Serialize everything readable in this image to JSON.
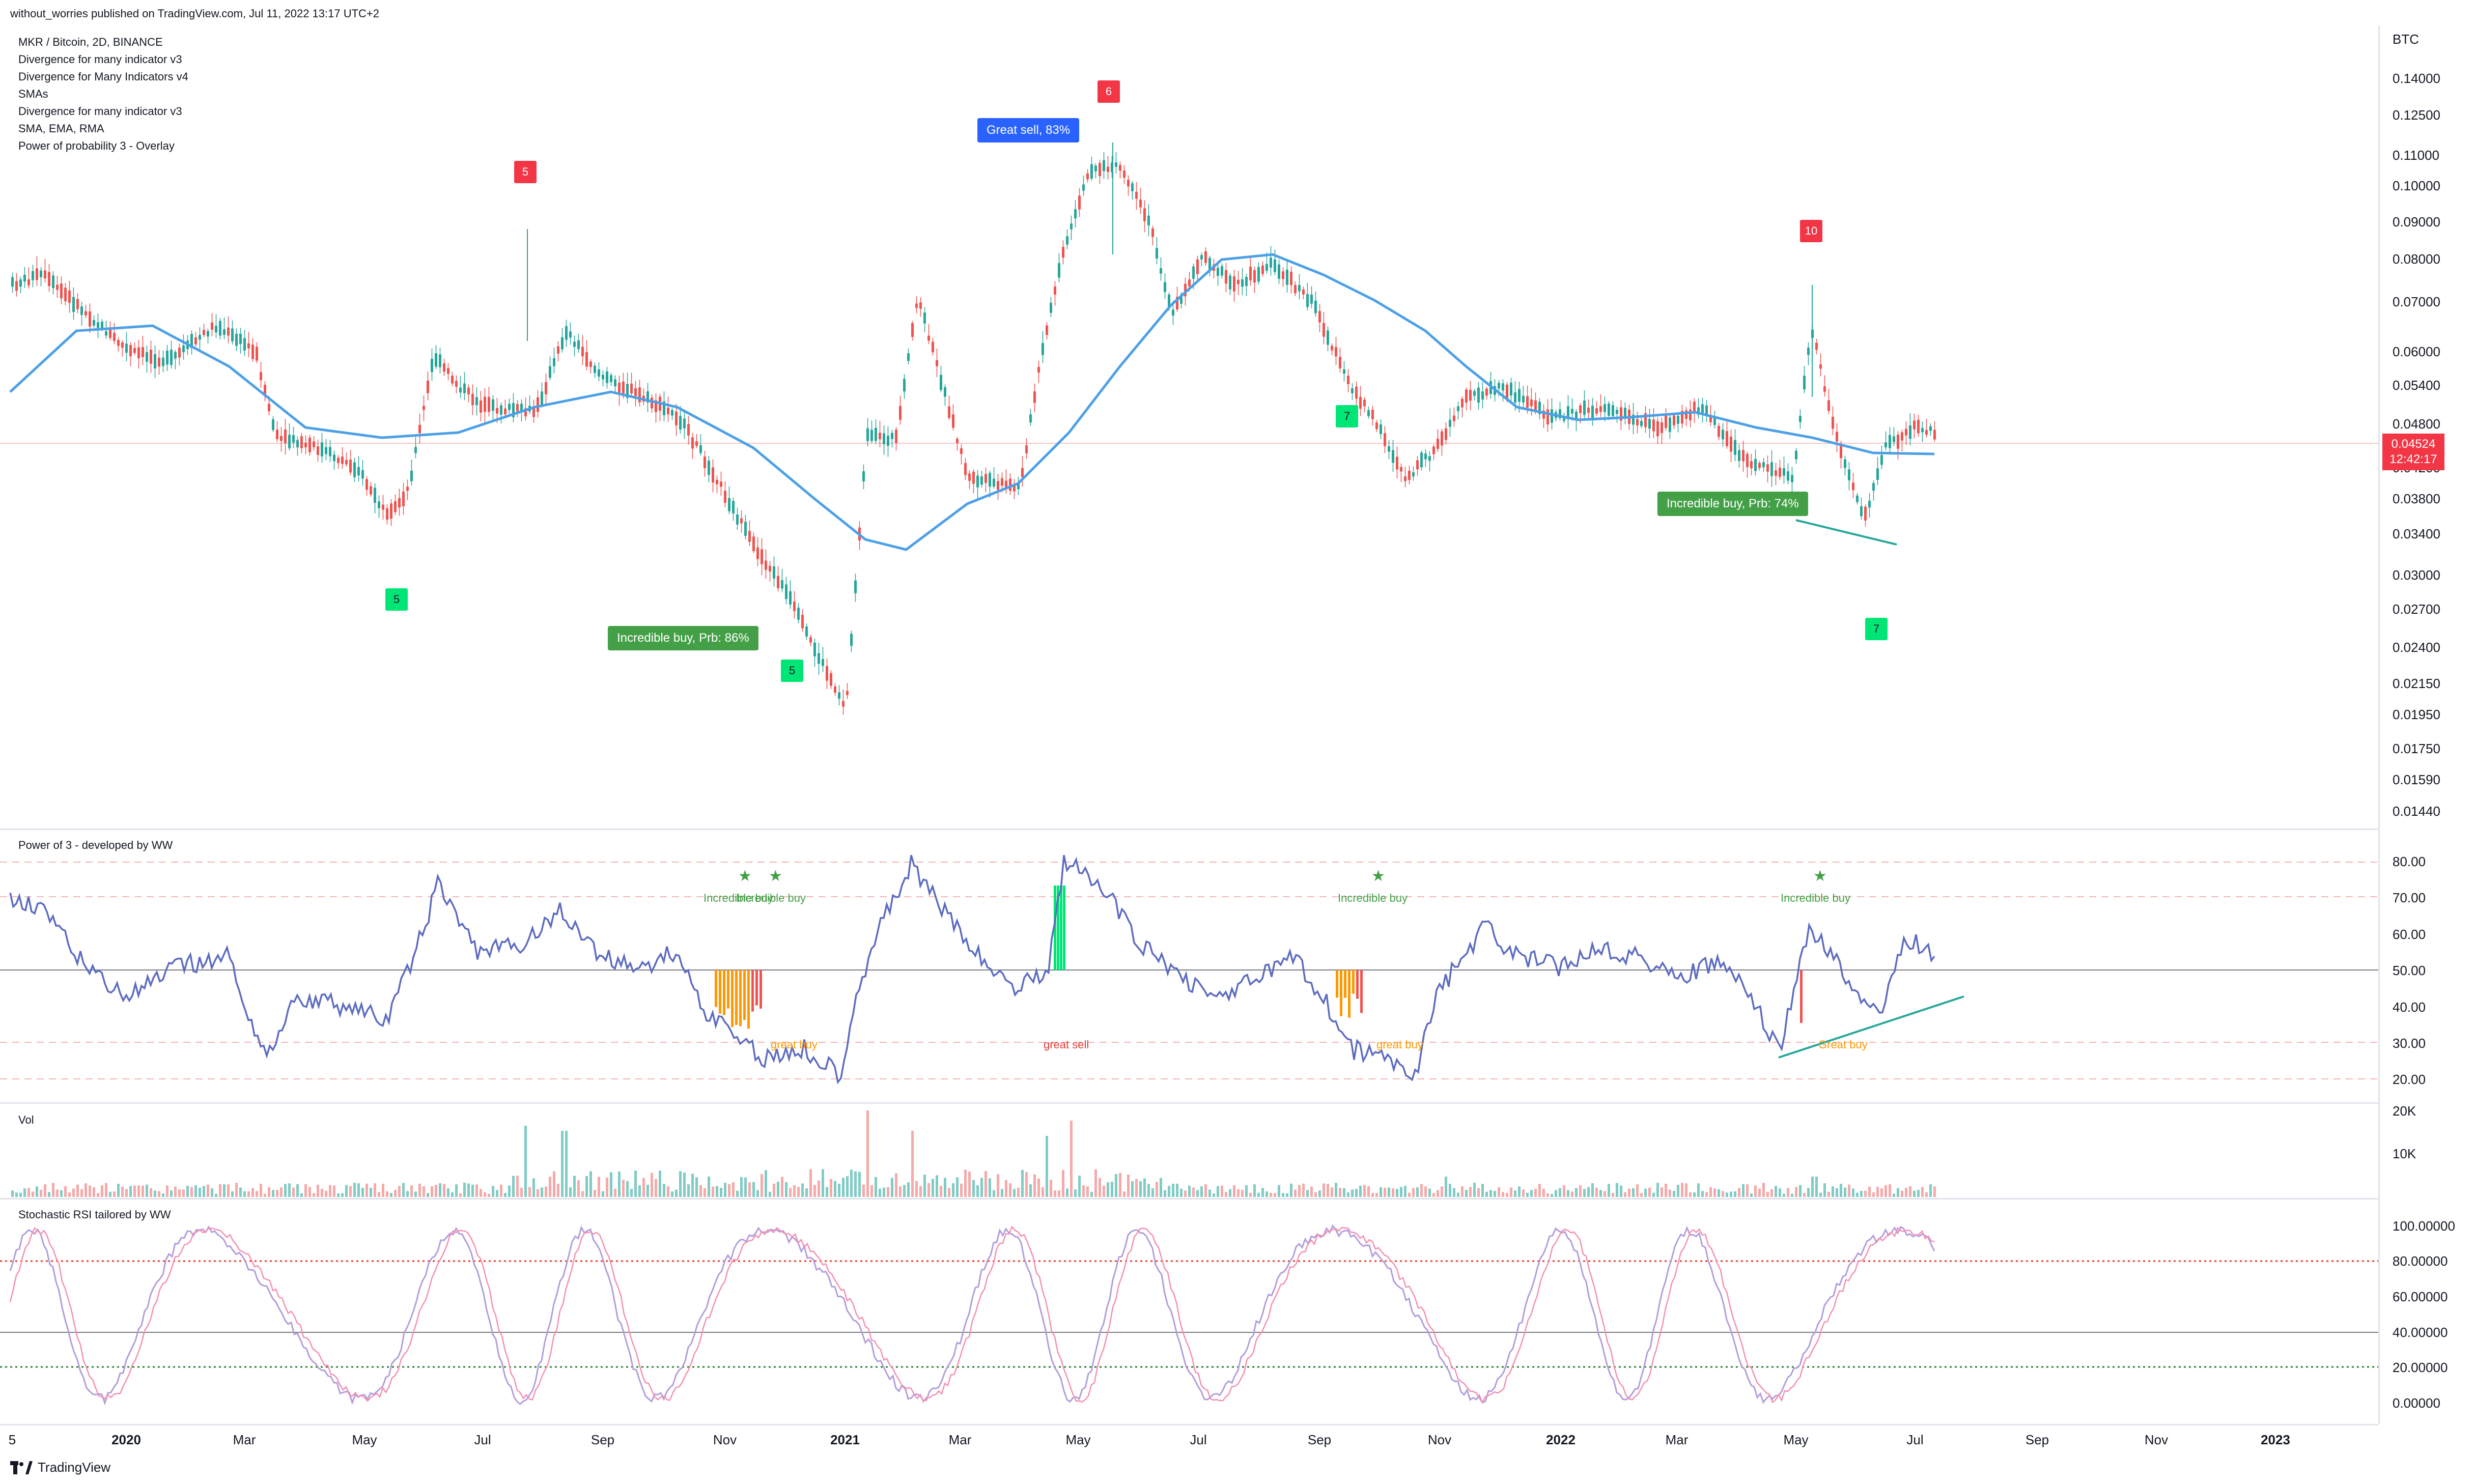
{
  "header": {
    "publisher": "without_worries published on TradingView.com, Jul 11, 2022 13:17 UTC+2"
  },
  "legend": [
    "MKR / Bitcoin, 2D, BINANCE",
    "Divergence for many indicator v3",
    "Divergence for Many Indicators v4",
    "SMAs",
    "Divergence for many indicator v3",
    "SMA, EMA, RMA",
    "Power of probability 3 - Overlay"
  ],
  "price_scale": {
    "currency": "BTC",
    "ticks": [
      "0.14000",
      "0.12500",
      "0.11000",
      "0.10000",
      "0.09000",
      "0.08000",
      "0.07000",
      "0.06000",
      "0.05400",
      "0.04800",
      "0.04200",
      "0.03800",
      "0.03400",
      "0.03000",
      "0.02700",
      "0.02400",
      "0.02150",
      "0.01950",
      "0.01750",
      "0.01590",
      "0.01440"
    ],
    "last_price": "0.04524",
    "countdown": "12:42:17"
  },
  "price_labels": {
    "great_sell": "Great sell, 83%",
    "incredible_buy_1": "Incredible buy, Prb: 86%",
    "incredible_buy_2": "Incredible buy, Prb: 74%"
  },
  "markers": {
    "red_1": "5",
    "red_2": "6",
    "red_3": "10",
    "green_1": "5",
    "green_2": "5",
    "green_3": "7",
    "green_4": "7"
  },
  "power_pane": {
    "title": "Power of 3 - developed by WW",
    "ticks": [
      "80.00",
      "70.00",
      "60.00",
      "50.00",
      "40.00",
      "30.00",
      "20.00"
    ],
    "signals": {
      "incredible_buy_a": "Incredible buy",
      "incredible_buy_b": "Incredible buy",
      "incredible_buy_c": "Incredible buy",
      "incredible_buy_d": "Incredible buy",
      "great_buy_a": "great buy",
      "great_sell": "great sell",
      "great_buy_b": "great buy",
      "great_buy_c": "Great buy"
    },
    "star": "★"
  },
  "volume_pane": {
    "title": "Vol",
    "ticks": [
      "20K",
      "10K"
    ]
  },
  "stoch_pane": {
    "title": "Stochastic RSI tailored by WW",
    "ticks": [
      "100.00000",
      "80.00000",
      "60.00000",
      "40.00000",
      "20.00000",
      "0.00000"
    ]
  },
  "time_axis": {
    "ticks": [
      "5",
      "2020",
      "Mar",
      "May",
      "Jul",
      "Sep",
      "Nov",
      "2021",
      "Mar",
      "May",
      "Jul",
      "Sep",
      "Nov",
      "2022",
      "Mar",
      "May",
      "Jul",
      "Sep",
      "Nov",
      "2023"
    ]
  },
  "footer": {
    "brand": "TradingView"
  },
  "colors": {
    "bull": "#26a69a",
    "bear": "#ef5350",
    "sma": "#4ca0e6",
    "power_line": "#2962ff",
    "power_line_hi": "#e53935",
    "stoch_k": "#b39ddb",
    "stoch_d": "#f48fb1",
    "buy_label": "#43a047",
    "sell_label": "#2962ff"
  }
}
